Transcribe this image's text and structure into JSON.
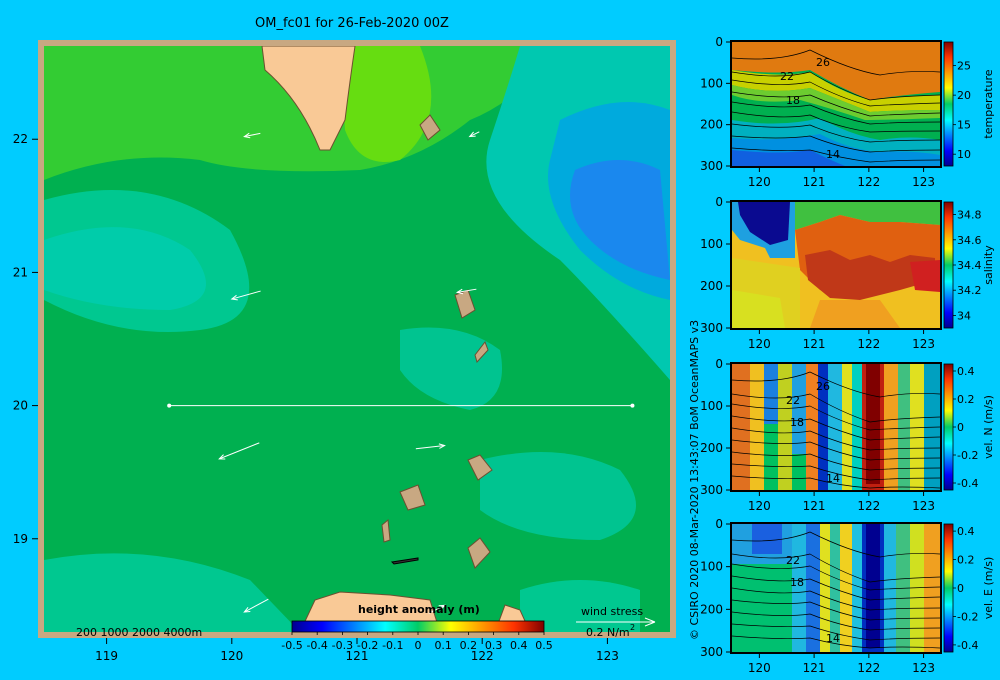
{
  "title": "OM_fc01 for 26-Feb-2020 00Z",
  "copyright": "© CSIRO 2020  08-Mar-2020 13:43:07 BoM OceanMAPS v3",
  "map": {
    "x_ticks": [
      "119",
      "120",
      "121",
      "122",
      "123"
    ],
    "y_ticks": [
      "22",
      "21",
      "20",
      "19"
    ],
    "depth_legend": "200  1000  2000  4000m",
    "colorbar_title": "height anomaly (m)",
    "colorbar_ticks": [
      "-0.5",
      "-0.4",
      "-0.3",
      "-0.2",
      "-0.1",
      "0",
      "0.1",
      "0.2",
      "0.3",
      "0.4",
      "0.5"
    ],
    "wind_label": "wind stress",
    "wind_scale": "0.2 N/m",
    "wind_scale_sup": "2"
  },
  "chart_data": [
    {
      "type": "heatmap",
      "name": "map",
      "xlim": [
        118.5,
        123.5
      ],
      "ylim": [
        18.3,
        22.7
      ],
      "colorbar_range": [
        -0.5,
        0.5
      ],
      "section_line": {
        "lat": 20.0,
        "lon_start": 119.5,
        "lon_end": 123.2
      },
      "wind_vectors": [
        {
          "lon": 120.1,
          "lat": 22.02,
          "u": 0.1,
          "v": 0.02
        },
        {
          "lon": 121.9,
          "lat": 22.02,
          "u": 0.06,
          "v": 0.03
        },
        {
          "lon": 120.0,
          "lat": 20.8,
          "u": 0.18,
          "v": 0.05
        },
        {
          "lon": 121.8,
          "lat": 20.85,
          "u": 0.12,
          "v": 0.02
        },
        {
          "lon": 119.9,
          "lat": 19.6,
          "u": 0.25,
          "v": 0.1
        },
        {
          "lon": 121.7,
          "lat": 19.7,
          "u": -0.18,
          "v": -0.02
        },
        {
          "lon": 120.1,
          "lat": 18.45,
          "u": 0.15,
          "v": 0.08
        },
        {
          "lon": 121.7,
          "lat": 18.5,
          "u": -0.1,
          "v": -0.05
        }
      ]
    },
    {
      "type": "heatmap",
      "name": "temperature section",
      "ylabel": "temperature",
      "xlim": [
        119.5,
        123.3
      ],
      "ylim": [
        300,
        0
      ],
      "x_ticks": [
        "120",
        "121",
        "122",
        "123"
      ],
      "y_ticks": [
        "0",
        "100",
        "200",
        "300"
      ],
      "colorbar_ticks": [
        "25",
        "20",
        "15",
        "10"
      ],
      "colorbar_range": [
        8,
        29
      ],
      "contour_labels": [
        "26",
        "22",
        "18",
        "14"
      ]
    },
    {
      "type": "heatmap",
      "name": "salinity section",
      "ylabel": "salinity",
      "xlim": [
        119.5,
        123.3
      ],
      "ylim": [
        300,
        0
      ],
      "x_ticks": [
        "120",
        "121",
        "122",
        "123"
      ],
      "y_ticks": [
        "0",
        "100",
        "200",
        "300"
      ],
      "colorbar_ticks": [
        "34.8",
        "34.6",
        "34.4",
        "34.2",
        "34"
      ],
      "colorbar_range": [
        33.9,
        34.9
      ]
    },
    {
      "type": "heatmap",
      "name": "vel. N section",
      "ylabel": "vel. N (m/s)",
      "xlim": [
        119.5,
        123.3
      ],
      "ylim": [
        300,
        0
      ],
      "x_ticks": [
        "120",
        "121",
        "122",
        "123"
      ],
      "y_ticks": [
        "0",
        "100",
        "200",
        "300"
      ],
      "colorbar_ticks": [
        "0.4",
        "0.2",
        "0",
        "-0.2",
        "-0.4"
      ],
      "colorbar_range": [
        -0.45,
        0.45
      ],
      "contour_labels": [
        "26",
        "22",
        "18",
        "14"
      ]
    },
    {
      "type": "heatmap",
      "name": "vel. E section",
      "ylabel": "vel. E (m/s)",
      "xlim": [
        119.5,
        123.3
      ],
      "ylim": [
        300,
        0
      ],
      "x_ticks": [
        "120",
        "121",
        "122",
        "123"
      ],
      "y_ticks": [
        "0",
        "100",
        "200",
        "300"
      ],
      "colorbar_ticks": [
        "0.4",
        "0.2",
        "0",
        "-0.2",
        "-0.4"
      ],
      "colorbar_range": [
        -0.45,
        0.45
      ],
      "contour_labels": [
        "22",
        "18",
        "14"
      ]
    }
  ]
}
